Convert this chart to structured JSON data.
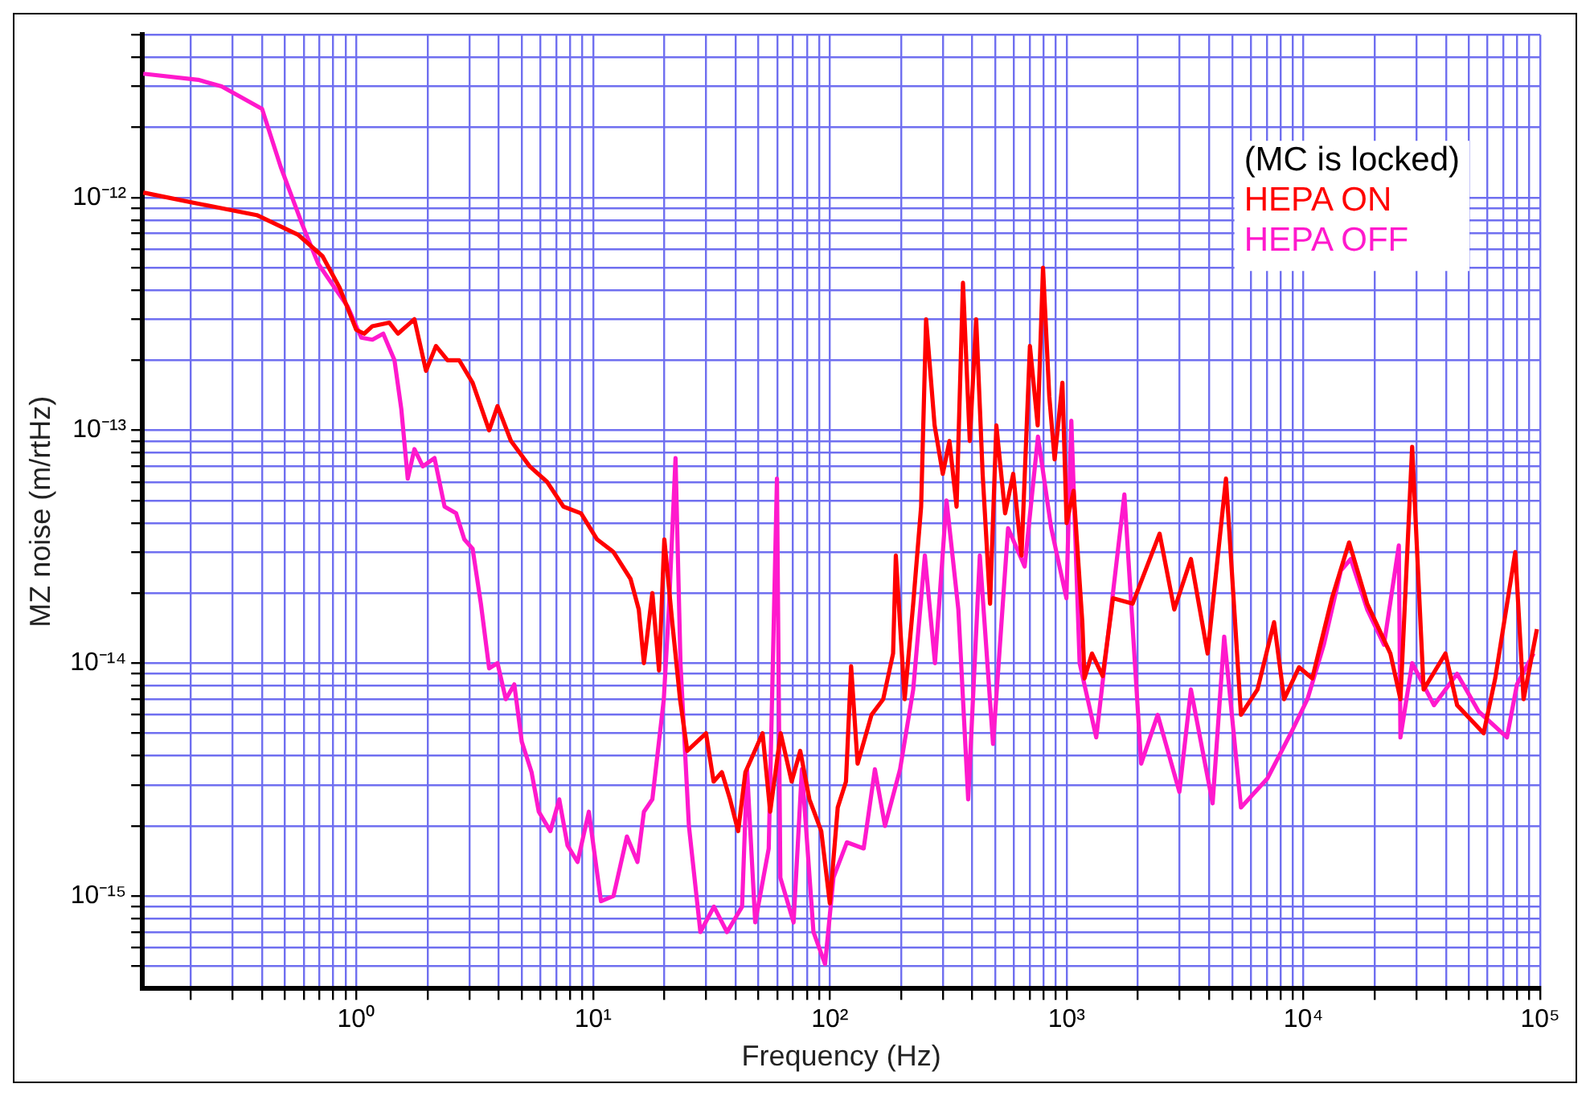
{
  "chart_data": {
    "type": "line",
    "xlabel": "Frequency (Hz)",
    "ylabel": "MZ noise (m/rtHz)",
    "log": "xy",
    "grid": true,
    "legend": "top right",
    "marker": "none",
    "line_style": "solid",
    "annotations": [
      "(MC is locked)"
    ],
    "xlim": [
      0.125,
      100000
    ],
    "ylim": [
      4e-16,
      5e-12
    ],
    "xticks": [
      {
        "value": 0.2,
        "label": null
      },
      {
        "value": 0.3,
        "label": null
      },
      {
        "value": 0.4,
        "label": null
      },
      {
        "value": 0.5,
        "label": null
      },
      {
        "value": 0.6,
        "label": null
      },
      {
        "value": 0.7,
        "label": null
      },
      {
        "value": 0.8,
        "label": null
      },
      {
        "value": 0.9,
        "label": null
      },
      {
        "value": 1,
        "label": "10⁰"
      },
      {
        "value": 2,
        "label": null
      },
      {
        "value": 3,
        "label": null
      },
      {
        "value": 4,
        "label": null
      },
      {
        "value": 5,
        "label": null
      },
      {
        "value": 6,
        "label": null
      },
      {
        "value": 7,
        "label": null
      },
      {
        "value": 8,
        "label": null
      },
      {
        "value": 9,
        "label": null
      },
      {
        "value": 10,
        "label": "10¹"
      },
      {
        "value": 20,
        "label": null
      },
      {
        "value": 30,
        "label": null
      },
      {
        "value": 40,
        "label": null
      },
      {
        "value": 50,
        "label": null
      },
      {
        "value": 60,
        "label": null
      },
      {
        "value": 70,
        "label": null
      },
      {
        "value": 80,
        "label": null
      },
      {
        "value": 90,
        "label": null
      },
      {
        "value": 100,
        "label": "10²"
      },
      {
        "value": 200,
        "label": null
      },
      {
        "value": 300,
        "label": null
      },
      {
        "value": 400,
        "label": null
      },
      {
        "value": 500,
        "label": null
      },
      {
        "value": 600,
        "label": null
      },
      {
        "value": 700,
        "label": null
      },
      {
        "value": 800,
        "label": null
      },
      {
        "value": 900,
        "label": null
      },
      {
        "value": 1000,
        "label": "10³"
      },
      {
        "value": 2000,
        "label": null
      },
      {
        "value": 3000,
        "label": null
      },
      {
        "value": 4000,
        "label": null
      },
      {
        "value": 5000,
        "label": null
      },
      {
        "value": 6000,
        "label": null
      },
      {
        "value": 7000,
        "label": null
      },
      {
        "value": 8000,
        "label": null
      },
      {
        "value": 9000,
        "label": null
      },
      {
        "value": 10000,
        "label": "10⁴"
      },
      {
        "value": 20000,
        "label": null
      },
      {
        "value": 30000,
        "label": null
      },
      {
        "value": 40000,
        "label": null
      },
      {
        "value": 50000,
        "label": null
      },
      {
        "value": 60000,
        "label": null
      },
      {
        "value": 70000,
        "label": null
      },
      {
        "value": 80000,
        "label": null
      },
      {
        "value": 90000,
        "label": null
      },
      {
        "value": 100000,
        "label": "10⁵"
      }
    ],
    "yticks": [
      {
        "value": 5e-16,
        "label": null
      },
      {
        "value": 6e-16,
        "label": null
      },
      {
        "value": 7e-16,
        "label": null
      },
      {
        "value": 8e-16,
        "label": null
      },
      {
        "value": 9e-16,
        "label": null
      },
      {
        "value": 1e-15,
        "label": "10⁻¹⁵"
      },
      {
        "value": 2e-15,
        "label": null
      },
      {
        "value": 3e-15,
        "label": null
      },
      {
        "value": 4e-15,
        "label": null
      },
      {
        "value": 5e-15,
        "label": null
      },
      {
        "value": 6e-15,
        "label": null
      },
      {
        "value": 7e-15,
        "label": null
      },
      {
        "value": 8e-15,
        "label": null
      },
      {
        "value": 9e-15,
        "label": null
      },
      {
        "value": 1e-14,
        "label": "10⁻¹⁴"
      },
      {
        "value": 2e-14,
        "label": null
      },
      {
        "value": 3e-14,
        "label": null
      },
      {
        "value": 4e-14,
        "label": null
      },
      {
        "value": 5e-14,
        "label": null
      },
      {
        "value": 6e-14,
        "label": null
      },
      {
        "value": 7e-14,
        "label": null
      },
      {
        "value": 8e-14,
        "label": null
      },
      {
        "value": 9e-14,
        "label": null
      },
      {
        "value": 1e-13,
        "label": "10⁻¹³"
      },
      {
        "value": 2e-13,
        "label": null
      },
      {
        "value": 3e-13,
        "label": null
      },
      {
        "value": 4e-13,
        "label": null
      },
      {
        "value": 5e-13,
        "label": null
      },
      {
        "value": 6e-13,
        "label": null
      },
      {
        "value": 7e-13,
        "label": null
      },
      {
        "value": 8e-13,
        "label": null
      },
      {
        "value": 9e-13,
        "label": null
      },
      {
        "value": 1e-12,
        "label": "10⁻¹²"
      },
      {
        "value": 2e-12,
        "label": null
      },
      {
        "value": 3e-12,
        "label": null
      },
      {
        "value": 4e-12,
        "label": null
      },
      {
        "value": 5e-12,
        "label": null
      }
    ],
    "series": [
      {
        "name": "HEPA ON",
        "color": "#ff0000",
        "x": [
          0.126,
          0.215,
          0.38,
          0.57,
          0.72,
          0.85,
          1.0,
          1.08,
          1.17,
          1.38,
          1.5,
          1.76,
          1.97,
          2.17,
          2.43,
          2.72,
          3.1,
          3.64,
          3.95,
          4.5,
          5.4,
          6.4,
          7.5,
          8.9,
          10.4,
          12.2,
          14.4,
          15.6,
          16.4,
          17.8,
          19,
          20,
          21.6,
          23.3,
          25,
          30,
          32.3,
          35,
          37.9,
          41,
          44,
          52,
          56,
          62,
          69,
          75,
          82,
          92,
          100,
          108,
          117,
          123,
          131,
          150,
          168,
          185,
          190,
          207,
          225,
          243,
          255,
          277,
          300,
          320,
          343,
          365,
          390,
          415,
          442,
          475,
          505,
          550,
          595,
          645,
          700,
          755,
          795,
          845,
          890,
          960,
          1000,
          1070,
          1165,
          1190,
          1280,
          1420,
          1570,
          1900,
          2470,
          2850,
          3350,
          3940,
          4710,
          5450,
          6400,
          7520,
          8290,
          9590,
          10900,
          13200,
          15600,
          18600,
          23300,
          25700,
          28800,
          32200,
          39800,
          44600,
          57700,
          64600,
          78500,
          85100,
          96900
        ],
        "values": [
          1.05e-12,
          9.4e-13,
          8.4e-13,
          6.9e-13,
          5.6e-13,
          4.1e-13,
          2.7e-13,
          2.6e-13,
          2.8e-13,
          2.9e-13,
          2.6e-13,
          3e-13,
          1.8e-13,
          2.3e-13,
          2e-13,
          2e-13,
          1.6e-13,
          1e-13,
          1.27e-13,
          9e-14,
          7e-14,
          6e-14,
          4.7e-14,
          4.4e-14,
          3.4e-14,
          3e-14,
          2.3e-14,
          1.7e-14,
          1e-14,
          2e-14,
          9.3e-15,
          3.4e-14,
          1.5e-14,
          7e-15,
          4.2e-15,
          5e-15,
          3.1e-15,
          3.4e-15,
          2.6e-15,
          1.9e-15,
          3.4e-15,
          5e-15,
          2.3e-15,
          5e-15,
          3.1e-15,
          4.2e-15,
          2.6e-15,
          1.9e-15,
          9.3e-16,
          2.4e-15,
          3.1e-15,
          9.7e-15,
          3.7e-15,
          6e-15,
          7e-15,
          1.1e-14,
          2.9e-14,
          7e-15,
          1.8e-14,
          4.7e-14,
          3e-13,
          1.05e-13,
          6.5e-14,
          9e-14,
          4.7e-14,
          4.3e-13,
          9e-14,
          3e-13,
          6.5e-14,
          1.8e-14,
          1.05e-13,
          4.4e-14,
          6.5e-14,
          2.9e-14,
          2.3e-13,
          1.05e-13,
          5e-13,
          1.4e-13,
          7.5e-14,
          1.6e-13,
          4e-14,
          5.5e-14,
          1.5e-14,
          8.6e-15,
          1.1e-14,
          8.8e-15,
          1.9e-14,
          1.8e-14,
          3.6e-14,
          1.7e-14,
          2.8e-14,
          1.1e-14,
          6.2e-14,
          6e-15,
          7.7e-15,
          1.5e-14,
          7e-15,
          9.6e-15,
          8.6e-15,
          1.9e-14,
          3.3e-14,
          1.8e-14,
          1.1e-14,
          7e-15,
          8.5e-14,
          7.7e-15,
          1.1e-14,
          6.6e-15,
          5e-15,
          8.6e-15,
          3e-14,
          7e-15,
          1.4e-14
        ]
      },
      {
        "name": "HEPA OFF",
        "color": "#ff19cc",
        "x": [
          0.126,
          0.215,
          0.27,
          0.4,
          0.48,
          0.59,
          0.69,
          0.81,
          0.92,
          1.05,
          1.17,
          1.3,
          1.45,
          1.55,
          1.65,
          1.76,
          1.91,
          2.14,
          2.36,
          2.64,
          2.86,
          3.1,
          3.36,
          3.64,
          3.95,
          4.28,
          4.65,
          5.0,
          5.5,
          5.9,
          6.6,
          7.2,
          7.8,
          8.6,
          9.6,
          10.8,
          12.2,
          13.9,
          15.4,
          16.4,
          17.8,
          19.9,
          20.9,
          22.3,
          23.4,
          25.4,
          28.4,
          32.4,
          36.8,
          42.6,
          44.7,
          48.4,
          55.2,
          59.8,
          61.8,
          70.3,
          76.2,
          85.3,
          95.5,
          103.6,
          118,
          139,
          155,
          171,
          198,
          225,
          252,
          278,
          311,
          349,
          384,
          430,
          489,
          566,
          665,
          757,
          861,
          998,
          1047,
          1135,
          1334,
          1754,
          2065,
          2425,
          2994,
          3350,
          4137,
          4630,
          5450,
          7050,
          8850,
          10400,
          12200,
          14400,
          15850,
          18600,
          21900,
          25300,
          25700,
          28800,
          35600,
          44600,
          55000,
          72400,
          79800,
          93800
        ],
        "values": [
          3.4e-12,
          3.2e-12,
          3e-12,
          2.4e-12,
          1.35e-12,
          7.7e-13,
          5.2e-13,
          4.1e-13,
          3.4e-13,
          2.5e-13,
          2.45e-13,
          2.6e-13,
          2e-13,
          1.23e-13,
          6.2e-14,
          8.3e-14,
          7e-14,
          7.6e-14,
          4.7e-14,
          4.4e-14,
          3.4e-14,
          3.1e-14,
          1.8e-14,
          9.5e-15,
          1e-14,
          7e-15,
          8.1e-15,
          4.6e-15,
          3.4e-15,
          2.3e-15,
          1.9e-15,
          2.6e-15,
          1.65e-15,
          1.4e-15,
          2.3e-15,
          9.5e-16,
          1e-15,
          1.8e-15,
          1.4e-15,
          2.3e-15,
          2.6e-15,
          7e-15,
          1.7e-14,
          7.6e-14,
          1e-14,
          2e-15,
          7e-16,
          9e-16,
          7e-16,
          9e-16,
          3.5e-15,
          7.7e-16,
          1.6e-15,
          6.2e-14,
          1.2e-15,
          7.7e-16,
          3.5e-15,
          7e-16,
          5.1e-16,
          1.2e-15,
          1.7e-15,
          1.6e-15,
          3.5e-15,
          2e-15,
          3.5e-15,
          7.7e-15,
          2.9e-14,
          1e-14,
          5e-14,
          1.7e-14,
          2.6e-15,
          2.9e-14,
          4.5e-15,
          3.8e-14,
          2.6e-14,
          9.4e-14,
          3.8e-14,
          1.9e-14,
          1.1e-13,
          1e-14,
          4.8e-15,
          5.3e-14,
          3.7e-15,
          6e-15,
          2.8e-15,
          7.7e-15,
          2.5e-15,
          1.3e-14,
          2.4e-15,
          3.2e-15,
          5e-15,
          7e-15,
          1.2e-14,
          2.5e-14,
          2.8e-14,
          1.7e-14,
          1.2e-14,
          3.2e-14,
          4.8e-15,
          1e-14,
          6.6e-15,
          9e-15,
          6.2e-15,
          4.8e-15,
          8.1e-15,
          1.1e-14
        ]
      }
    ]
  }
}
